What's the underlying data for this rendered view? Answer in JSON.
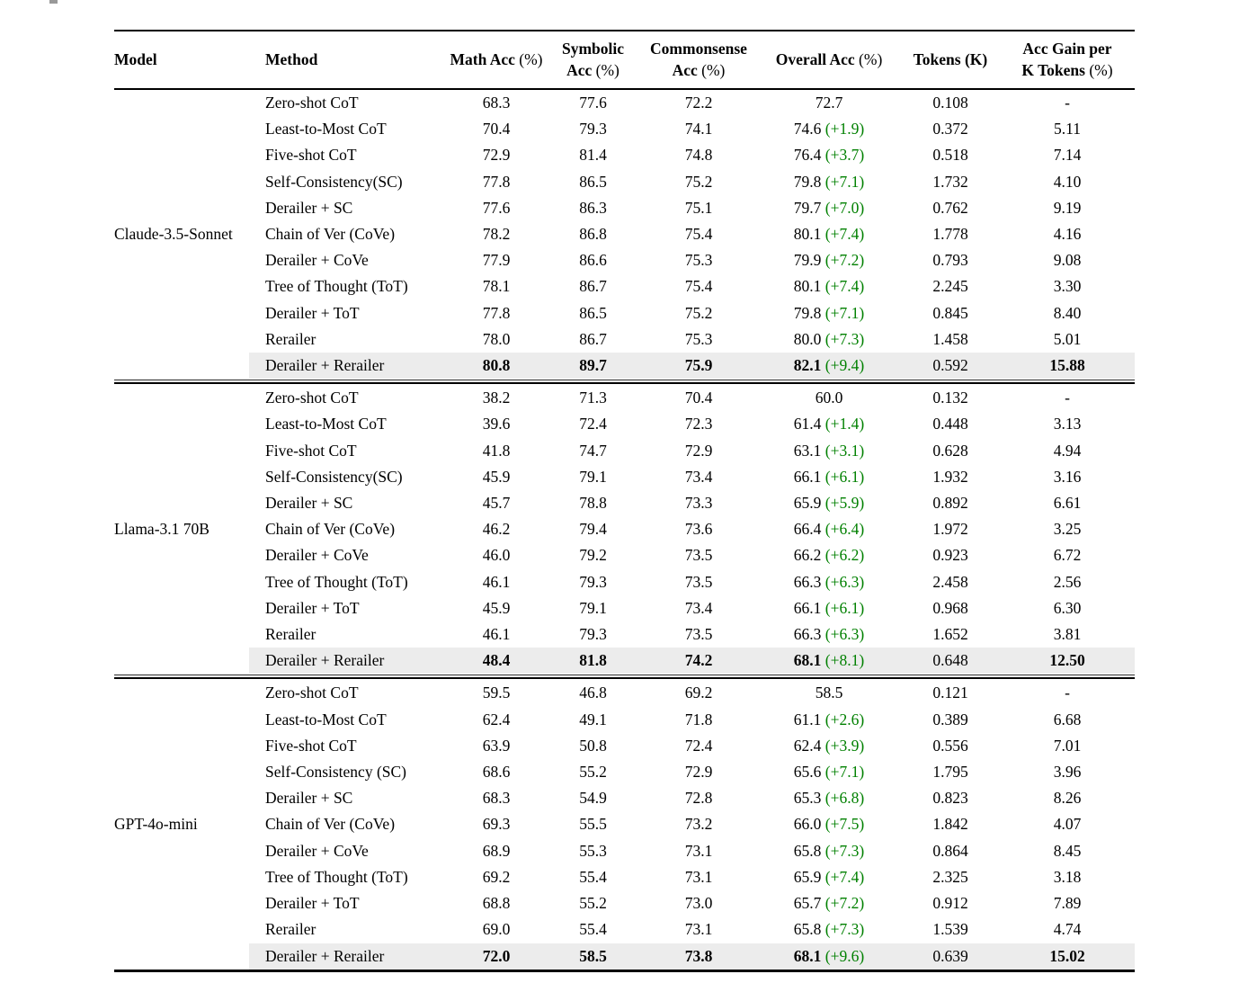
{
  "fragment": {
    "note": "cut-off caption glyph at top of crop",
    "color": "#999999"
  },
  "colors": {
    "delta_green": "#008000",
    "highlight_row": "#ececec",
    "rule": "#000000",
    "background": "#ffffff"
  },
  "table": {
    "columns": [
      {
        "id": "model",
        "align": "left",
        "lines": [
          [
            {
              "t": "Model",
              "b": true
            }
          ]
        ]
      },
      {
        "id": "method",
        "align": "left",
        "lines": [
          [
            {
              "t": "Method",
              "b": true
            }
          ]
        ]
      },
      {
        "id": "math",
        "align": "center",
        "lines": [
          [
            {
              "t": "Math Acc ",
              "b": true
            },
            {
              "t": "(%)",
              "b": false
            }
          ]
        ]
      },
      {
        "id": "symbolic",
        "align": "center",
        "lines": [
          [
            {
              "t": "Symbolic",
              "b": true
            }
          ],
          [
            {
              "t": "Acc ",
              "b": true
            },
            {
              "t": "(%)",
              "b": false
            }
          ]
        ]
      },
      {
        "id": "commonsense",
        "align": "center",
        "lines": [
          [
            {
              "t": "Commonsense",
              "b": true
            }
          ],
          [
            {
              "t": "Acc ",
              "b": true
            },
            {
              "t": "(%)",
              "b": false
            }
          ]
        ]
      },
      {
        "id": "overall",
        "align": "center",
        "lines": [
          [
            {
              "t": "Overall Acc ",
              "b": true
            },
            {
              "t": "(%)",
              "b": false
            }
          ]
        ]
      },
      {
        "id": "tokens",
        "align": "center",
        "lines": [
          [
            {
              "t": "Tokens (K)",
              "b": true
            }
          ]
        ]
      },
      {
        "id": "gain",
        "align": "center",
        "lines": [
          [
            {
              "t": "Acc Gain per",
              "b": true
            }
          ],
          [
            {
              "t": "K Tokens ",
              "b": true
            },
            {
              "t": "(%)",
              "b": false
            }
          ]
        ]
      }
    ],
    "groups": [
      {
        "model": "Claude-3.5-Sonnet",
        "rows": [
          {
            "method": "Zero-shot CoT",
            "math": "68.3",
            "symbolic": "77.6",
            "commonsense": "72.2",
            "overall": "72.7",
            "delta": "",
            "tokens": "0.108",
            "gain": "-",
            "best": false
          },
          {
            "method": "Least-to-Most CoT",
            "math": "70.4",
            "symbolic": "79.3",
            "commonsense": "74.1",
            "overall": "74.6",
            "delta": "(+1.9)",
            "tokens": "0.372",
            "gain": "5.11",
            "best": false
          },
          {
            "method": "Five-shot CoT",
            "math": "72.9",
            "symbolic": "81.4",
            "commonsense": "74.8",
            "overall": "76.4",
            "delta": "(+3.7)",
            "tokens": "0.518",
            "gain": "7.14",
            "best": false
          },
          {
            "method": "Self-Consistency(SC)",
            "math": "77.8",
            "symbolic": "86.5",
            "commonsense": "75.2",
            "overall": "79.8",
            "delta": "(+7.1)",
            "tokens": "1.732",
            "gain": "4.10",
            "best": false
          },
          {
            "method": "Derailer + SC",
            "math": "77.6",
            "symbolic": "86.3",
            "commonsense": "75.1",
            "overall": "79.7",
            "delta": "(+7.0)",
            "tokens": "0.762",
            "gain": "9.19",
            "best": false
          },
          {
            "method": "Chain of Ver (CoVe)",
            "math": "78.2",
            "symbolic": "86.8",
            "commonsense": "75.4",
            "overall": "80.1",
            "delta": "(+7.4)",
            "tokens": "1.778",
            "gain": "4.16",
            "best": false
          },
          {
            "method": "Derailer + CoVe",
            "math": "77.9",
            "symbolic": "86.6",
            "commonsense": "75.3",
            "overall": "79.9",
            "delta": "(+7.2)",
            "tokens": "0.793",
            "gain": "9.08",
            "best": false
          },
          {
            "method": "Tree of Thought (ToT)",
            "math": "78.1",
            "symbolic": "86.7",
            "commonsense": "75.4",
            "overall": "80.1",
            "delta": "(+7.4)",
            "tokens": "2.245",
            "gain": "3.30",
            "best": false
          },
          {
            "method": "Derailer + ToT",
            "math": "77.8",
            "symbolic": "86.5",
            "commonsense": "75.2",
            "overall": "79.8",
            "delta": "(+7.1)",
            "tokens": "0.845",
            "gain": "8.40",
            "best": false
          },
          {
            "method": "Rerailer",
            "math": "78.0",
            "symbolic": "86.7",
            "commonsense": "75.3",
            "overall": "80.0",
            "delta": "(+7.3)",
            "tokens": "1.458",
            "gain": "5.01",
            "best": false
          },
          {
            "method": "Derailer + Rerailer",
            "math": "80.8",
            "symbolic": "89.7",
            "commonsense": "75.9",
            "overall": "82.1",
            "delta": "(+9.4)",
            "tokens": "0.592",
            "gain": "15.88",
            "best": true
          }
        ]
      },
      {
        "model": "Llama-3.1 70B",
        "rows": [
          {
            "method": "Zero-shot CoT",
            "math": "38.2",
            "symbolic": "71.3",
            "commonsense": "70.4",
            "overall": "60.0",
            "delta": "",
            "tokens": "0.132",
            "gain": "-",
            "best": false
          },
          {
            "method": "Least-to-Most CoT",
            "math": "39.6",
            "symbolic": "72.4",
            "commonsense": "72.3",
            "overall": "61.4",
            "delta": "(+1.4)",
            "tokens": "0.448",
            "gain": "3.13",
            "best": false
          },
          {
            "method": "Five-shot CoT",
            "math": "41.8",
            "symbolic": "74.7",
            "commonsense": "72.9",
            "overall": "63.1",
            "delta": "(+3.1)",
            "tokens": "0.628",
            "gain": "4.94",
            "best": false
          },
          {
            "method": "Self-Consistency(SC)",
            "math": "45.9",
            "symbolic": "79.1",
            "commonsense": "73.4",
            "overall": "66.1",
            "delta": "(+6.1)",
            "tokens": "1.932",
            "gain": "3.16",
            "best": false
          },
          {
            "method": "Derailer + SC",
            "math": "45.7",
            "symbolic": "78.8",
            "commonsense": "73.3",
            "overall": "65.9",
            "delta": "(+5.9)",
            "tokens": "0.892",
            "gain": "6.61",
            "best": false
          },
          {
            "method": "Chain of Ver (CoVe)",
            "math": "46.2",
            "symbolic": "79.4",
            "commonsense": "73.6",
            "overall": "66.4",
            "delta": "(+6.4)",
            "tokens": "1.972",
            "gain": "3.25",
            "best": false
          },
          {
            "method": "Derailer + CoVe",
            "math": "46.0",
            "symbolic": "79.2",
            "commonsense": "73.5",
            "overall": "66.2",
            "delta": "(+6.2)",
            "tokens": "0.923",
            "gain": "6.72",
            "best": false
          },
          {
            "method": "Tree of Thought (ToT)",
            "math": "46.1",
            "symbolic": "79.3",
            "commonsense": "73.5",
            "overall": "66.3",
            "delta": "(+6.3)",
            "tokens": "2.458",
            "gain": "2.56",
            "best": false
          },
          {
            "method": "Derailer + ToT",
            "math": "45.9",
            "symbolic": "79.1",
            "commonsense": "73.4",
            "overall": "66.1",
            "delta": "(+6.1)",
            "tokens": "0.968",
            "gain": "6.30",
            "best": false
          },
          {
            "method": "Rerailer",
            "math": "46.1",
            "symbolic": "79.3",
            "commonsense": "73.5",
            "overall": "66.3",
            "delta": "(+6.3)",
            "tokens": "1.652",
            "gain": "3.81",
            "best": false
          },
          {
            "method": "Derailer + Rerailer",
            "math": "48.4",
            "symbolic": "81.8",
            "commonsense": "74.2",
            "overall": "68.1",
            "delta": "(+8.1)",
            "tokens": "0.648",
            "gain": "12.50",
            "best": true
          }
        ]
      },
      {
        "model": "GPT-4o-mini",
        "rows": [
          {
            "method": "Zero-shot CoT",
            "math": "59.5",
            "symbolic": "46.8",
            "commonsense": "69.2",
            "overall": "58.5",
            "delta": "",
            "tokens": "0.121",
            "gain": "-",
            "best": false
          },
          {
            "method": "Least-to-Most CoT",
            "math": "62.4",
            "symbolic": "49.1",
            "commonsense": "71.8",
            "overall": "61.1",
            "delta": "(+2.6)",
            "tokens": "0.389",
            "gain": "6.68",
            "best": false
          },
          {
            "method": "Five-shot CoT",
            "math": "63.9",
            "symbolic": "50.8",
            "commonsense": "72.4",
            "overall": "62.4",
            "delta": "(+3.9)",
            "tokens": "0.556",
            "gain": "7.01",
            "best": false
          },
          {
            "method": "Self-Consistency (SC)",
            "math": "68.6",
            "symbolic": "55.2",
            "commonsense": "72.9",
            "overall": "65.6",
            "delta": "(+7.1)",
            "tokens": "1.795",
            "gain": "3.96",
            "best": false
          },
          {
            "method": "Derailer + SC",
            "math": "68.3",
            "symbolic": "54.9",
            "commonsense": "72.8",
            "overall": "65.3",
            "delta": "(+6.8)",
            "tokens": "0.823",
            "gain": "8.26",
            "best": false
          },
          {
            "method": "Chain of Ver (CoVe)",
            "math": "69.3",
            "symbolic": "55.5",
            "commonsense": "73.2",
            "overall": "66.0",
            "delta": "(+7.5)",
            "tokens": "1.842",
            "gain": "4.07",
            "best": false
          },
          {
            "method": "Derailer + CoVe",
            "math": "68.9",
            "symbolic": "55.3",
            "commonsense": "73.1",
            "overall": "65.8",
            "delta": "(+7.3)",
            "tokens": "0.864",
            "gain": "8.45",
            "best": false
          },
          {
            "method": "Tree of Thought (ToT)",
            "math": "69.2",
            "symbolic": "55.4",
            "commonsense": "73.1",
            "overall": "65.9",
            "delta": "(+7.4)",
            "tokens": "2.325",
            "gain": "3.18",
            "best": false
          },
          {
            "method": "Derailer + ToT",
            "math": "68.8",
            "symbolic": "55.2",
            "commonsense": "73.0",
            "overall": "65.7",
            "delta": "(+7.2)",
            "tokens": "0.912",
            "gain": "7.89",
            "best": false
          },
          {
            "method": "Rerailer",
            "math": "69.0",
            "symbolic": "55.4",
            "commonsense": "73.1",
            "overall": "65.8",
            "delta": "(+7.3)",
            "tokens": "1.539",
            "gain": "4.74",
            "best": false
          },
          {
            "method": "Derailer + Rerailer",
            "math": "72.0",
            "symbolic": "58.5",
            "commonsense": "73.8",
            "overall": "68.1",
            "delta": "(+9.6)",
            "tokens": "0.639",
            "gain": "15.02",
            "best": true
          }
        ]
      }
    ]
  }
}
